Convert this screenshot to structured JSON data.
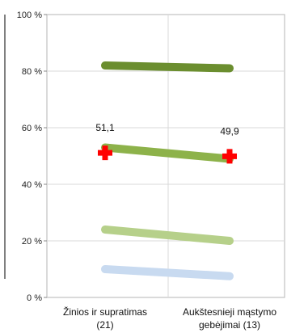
{
  "chart_data": {
    "type": "line",
    "title": "",
    "xlabel": "",
    "ylabel": "",
    "ylim": [
      0,
      100
    ],
    "y_ticks": [
      "0 %",
      "20 %",
      "40 %",
      "60 %",
      "80 %",
      "100 %"
    ],
    "y_tick_values": [
      0,
      20,
      40,
      60,
      80,
      100
    ],
    "grid": true,
    "categories": [
      {
        "line1": "Žinios ir supratimas",
        "line2": "(21)"
      },
      {
        "line1": "Aukštesnieji mąstymo",
        "line2": "gebėjimai (13)"
      }
    ],
    "series": [
      {
        "values": [
          82,
          81
        ],
        "color": "#6b8e2f"
      },
      {
        "values": [
          53,
          49
        ],
        "color": "#8db24a"
      },
      {
        "values": [
          24,
          20
        ],
        "color": "#b6d08a"
      },
      {
        "values": [
          10,
          7.5
        ],
        "color": "#c8daf0"
      }
    ],
    "markers": {
      "values": [
        51.1,
        49.9
      ],
      "labels": [
        "51,1",
        "49,9"
      ],
      "color": "#ff0000",
      "shape": "cross"
    }
  }
}
